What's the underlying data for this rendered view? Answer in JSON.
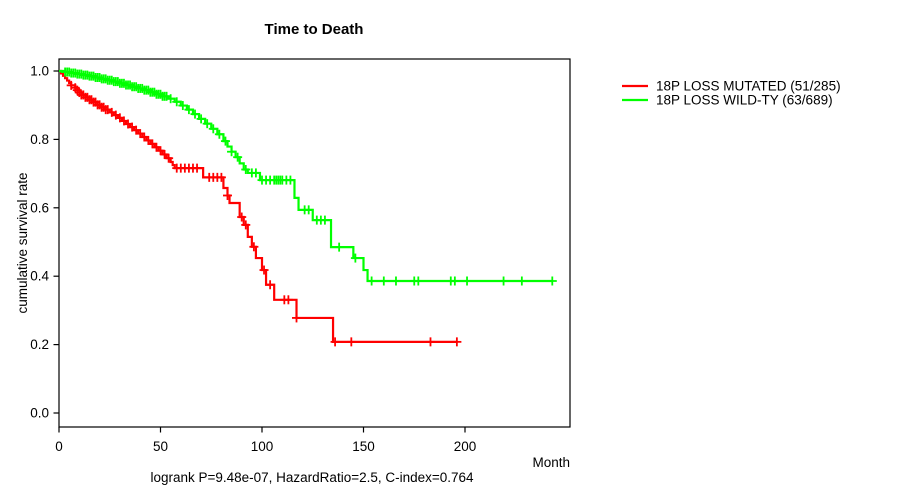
{
  "chart_data": {
    "type": "line",
    "subtype": "kaplan-meier-step-survival",
    "title": "Time to Death",
    "xlabel": "Month",
    "ylabel": "cumulative survival rate",
    "footer": "logrank P=9.48e-07, HazardRatio=2.5, C-index=0.764",
    "xlim": [
      0,
      252
    ],
    "ylim": [
      0.0,
      1.0
    ],
    "xticks": [
      0,
      50,
      100,
      150,
      200
    ],
    "yticks": [
      {
        "value": 0.0,
        "label": "0.0"
      },
      {
        "value": 0.2,
        "label": "0.2"
      },
      {
        "value": 0.4,
        "label": "0.4"
      },
      {
        "value": 0.6,
        "label": "0.6"
      },
      {
        "value": 0.8,
        "label": "0.8"
      },
      {
        "value": 1.0,
        "label": "1.0"
      }
    ],
    "grid": false,
    "legend_position": "right-outside",
    "series": [
      {
        "name": "18P LOSS MUTATED (51/285)",
        "color": "#ff0000",
        "end_month": 196,
        "steps": [
          [
            0,
            1.0
          ],
          [
            1,
            0.993
          ],
          [
            2,
            0.986
          ],
          [
            3,
            0.979
          ],
          [
            4,
            0.972
          ],
          [
            5,
            0.965
          ],
          [
            6,
            0.958
          ],
          [
            8,
            0.951
          ],
          [
            9,
            0.944
          ],
          [
            10,
            0.937
          ],
          [
            11,
            0.93
          ],
          [
            13,
            0.923
          ],
          [
            15,
            0.916
          ],
          [
            17,
            0.909
          ],
          [
            19,
            0.901
          ],
          [
            21,
            0.894
          ],
          [
            23,
            0.887
          ],
          [
            25,
            0.879
          ],
          [
            27,
            0.871
          ],
          [
            29,
            0.863
          ],
          [
            31,
            0.854
          ],
          [
            33,
            0.845
          ],
          [
            35,
            0.836
          ],
          [
            37,
            0.827
          ],
          [
            39,
            0.817
          ],
          [
            41,
            0.807
          ],
          [
            43,
            0.797
          ],
          [
            45,
            0.787
          ],
          [
            47,
            0.777
          ],
          [
            49,
            0.767
          ],
          [
            51,
            0.756
          ],
          [
            53,
            0.745
          ],
          [
            55,
            0.734
          ],
          [
            56,
            0.725
          ],
          [
            57,
            0.716
          ],
          [
            71,
            0.689
          ],
          [
            81,
            0.658
          ],
          [
            83,
            0.636
          ],
          [
            84,
            0.614
          ],
          [
            89,
            0.573
          ],
          [
            91,
            0.55
          ],
          [
            93,
            0.515
          ],
          [
            95,
            0.486
          ],
          [
            97,
            0.453
          ],
          [
            100,
            0.418
          ],
          [
            102,
            0.375
          ],
          [
            106,
            0.331
          ],
          [
            117,
            0.278
          ],
          [
            135,
            0.208
          ]
        ],
        "censor_months": [
          6,
          8,
          9,
          10,
          11,
          12,
          13,
          14,
          15,
          16,
          17,
          18,
          19,
          20,
          21,
          22,
          23,
          24,
          26,
          28,
          30,
          32,
          34,
          36,
          38,
          40,
          42,
          44,
          46,
          48,
          50,
          52,
          54,
          58,
          60,
          62,
          64,
          66,
          68,
          74,
          76,
          78,
          80,
          83,
          90,
          92,
          96,
          101,
          104,
          111,
          113,
          117,
          136,
          144,
          183,
          196
        ]
      },
      {
        "name": "18P LOSS WILD-TY (63/689)",
        "color": "#00ff00",
        "end_month": 243,
        "steps": [
          [
            0,
            1.0
          ],
          [
            3,
            0.997
          ],
          [
            6,
            0.994
          ],
          [
            9,
            0.991
          ],
          [
            12,
            0.988
          ],
          [
            15,
            0.985
          ],
          [
            18,
            0.981
          ],
          [
            21,
            0.977
          ],
          [
            24,
            0.973
          ],
          [
            27,
            0.969
          ],
          [
            30,
            0.964
          ],
          [
            33,
            0.959
          ],
          [
            36,
            0.954
          ],
          [
            39,
            0.949
          ],
          [
            42,
            0.944
          ],
          [
            45,
            0.938
          ],
          [
            48,
            0.932
          ],
          [
            51,
            0.926
          ],
          [
            54,
            0.919
          ],
          [
            57,
            0.91
          ],
          [
            60,
            0.899
          ],
          [
            63,
            0.887
          ],
          [
            66,
            0.874
          ],
          [
            69,
            0.86
          ],
          [
            72,
            0.846
          ],
          [
            75,
            0.831
          ],
          [
            78,
            0.815
          ],
          [
            81,
            0.795
          ],
          [
            83,
            0.779
          ],
          [
            85,
            0.764
          ],
          [
            87,
            0.748
          ],
          [
            89,
            0.73
          ],
          [
            91,
            0.712
          ],
          [
            93,
            0.702
          ],
          [
            99,
            0.681
          ],
          [
            116,
            0.629
          ],
          [
            118,
            0.594
          ],
          [
            125,
            0.564
          ],
          [
            134,
            0.485
          ],
          [
            145,
            0.453
          ],
          [
            150,
            0.418
          ],
          [
            152,
            0.386
          ]
        ],
        "censor_months": [
          3,
          4,
          5,
          6,
          7,
          8,
          9,
          10,
          11,
          12,
          13,
          14,
          15,
          16,
          17,
          18,
          19,
          20,
          21,
          22,
          23,
          24,
          25,
          26,
          27,
          28,
          29,
          30,
          31,
          32,
          33,
          34,
          35,
          36,
          37,
          38,
          39,
          40,
          41,
          42,
          43,
          44,
          45,
          46,
          47,
          48,
          49,
          50,
          51,
          52,
          53,
          55,
          58,
          61,
          64,
          67,
          70,
          73,
          76,
          79,
          82,
          85,
          88,
          92,
          95,
          97,
          100,
          102,
          104,
          106,
          107,
          108,
          109,
          110,
          112,
          114,
          121,
          123,
          127,
          129,
          131,
          138,
          146,
          154,
          160,
          166,
          175,
          177,
          193,
          195,
          201,
          219,
          228,
          243
        ]
      }
    ],
    "plot_colors": {
      "background": "#ffffff",
      "box": "#000000",
      "text": "#000000"
    }
  }
}
